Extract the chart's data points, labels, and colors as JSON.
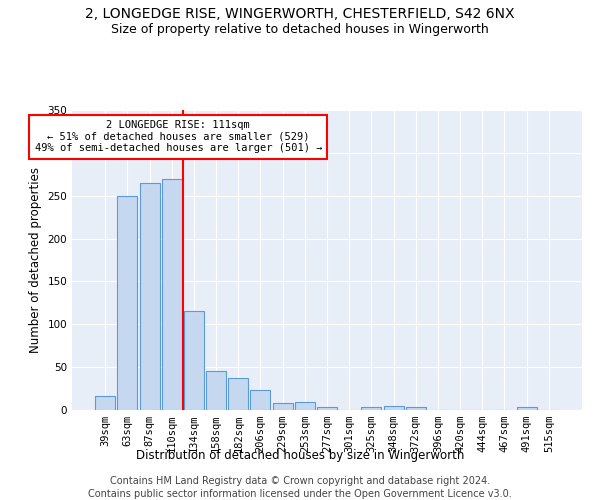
{
  "title_line1": "2, LONGEDGE RISE, WINGERWORTH, CHESTERFIELD, S42 6NX",
  "title_line2": "Size of property relative to detached houses in Wingerworth",
  "xlabel": "Distribution of detached houses by size in Wingerworth",
  "ylabel": "Number of detached properties",
  "footer_line1": "Contains HM Land Registry data © Crown copyright and database right 2024.",
  "footer_line2": "Contains public sector information licensed under the Open Government Licence v3.0.",
  "categories": [
    "39sqm",
    "63sqm",
    "87sqm",
    "110sqm",
    "134sqm",
    "158sqm",
    "182sqm",
    "206sqm",
    "229sqm",
    "253sqm",
    "277sqm",
    "301sqm",
    "325sqm",
    "348sqm",
    "372sqm",
    "396sqm",
    "420sqm",
    "444sqm",
    "467sqm",
    "491sqm",
    "515sqm"
  ],
  "values": [
    16,
    250,
    265,
    270,
    116,
    45,
    37,
    23,
    8,
    9,
    3,
    0,
    4,
    5,
    4,
    0,
    0,
    0,
    0,
    3,
    0
  ],
  "bar_color": "#c5d8f0",
  "bar_edge_color": "#5b9bd5",
  "red_line_x": 3.5,
  "annotation_text": "2 LONGEDGE RISE: 111sqm\n← 51% of detached houses are smaller (529)\n49% of semi-detached houses are larger (501) →",
  "annotation_box_color": "white",
  "annotation_box_edge_color": "red",
  "ylim": [
    0,
    350
  ],
  "yticks": [
    0,
    50,
    100,
    150,
    200,
    250,
    300,
    350
  ],
  "background_color": "#e8eef7",
  "grid_color": "white",
  "title_fontsize": 10,
  "subtitle_fontsize": 9,
  "axis_label_fontsize": 8.5,
  "tick_fontsize": 7.5,
  "footer_fontsize": 7
}
